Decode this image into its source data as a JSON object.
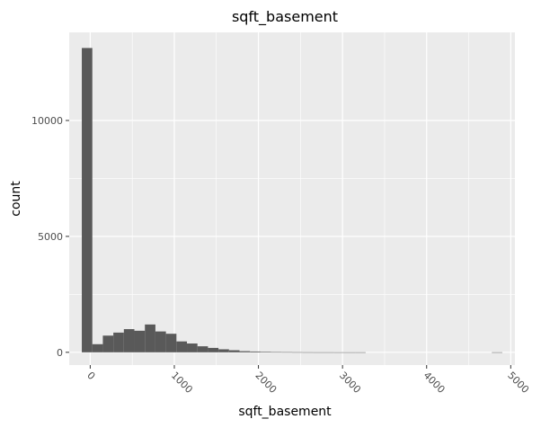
{
  "chart_data": {
    "type": "bar",
    "title": "sqft_basement",
    "xlabel": "sqft_basement",
    "ylabel": "count",
    "xlim": [
      -250,
      5050
    ],
    "ylim": [
      -550,
      13800
    ],
    "x_ticks": [
      0,
      1000,
      2000,
      3000,
      4000,
      5000
    ],
    "x_tick_labels": [
      "0",
      "1000",
      "2000",
      "3000",
      "4000",
      "5000"
    ],
    "y_ticks": [
      0,
      5000,
      10000
    ],
    "y_tick_labels": [
      "0",
      "5000",
      "10000"
    ],
    "grid": true,
    "colors": {
      "panel": "#ebebeb",
      "grid_major": "#ffffff",
      "bar": "#595959"
    },
    "bin_width": 125,
    "bin_starts": [
      -100,
      25,
      150,
      275,
      400,
      525,
      650,
      775,
      900,
      1025,
      1150,
      1275,
      1400,
      1525,
      1650,
      1775,
      1900,
      2025,
      2150,
      2275,
      2400,
      2525,
      2650,
      2775,
      2900,
      3025,
      3150,
      3275,
      3400,
      3525,
      3650,
      3775,
      3900,
      4025,
      4150,
      4275,
      4400,
      4525,
      4650,
      4775
    ],
    "values": [
      13126,
      350,
      720,
      850,
      1000,
      930,
      1200,
      900,
      800,
      470,
      380,
      260,
      190,
      130,
      90,
      50,
      35,
      25,
      10,
      8,
      5,
      3,
      2,
      2,
      1,
      1,
      1,
      0,
      0,
      0,
      0,
      0,
      0,
      0,
      0,
      0,
      0,
      0,
      0,
      1
    ]
  }
}
